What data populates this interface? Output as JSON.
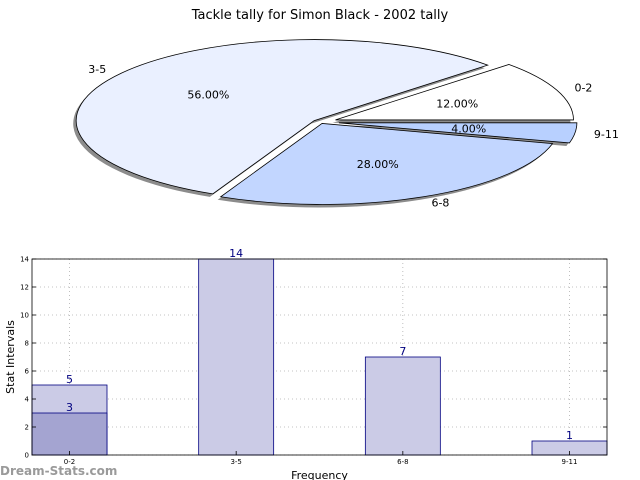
{
  "watermark": "Dream-Stats.com",
  "colors": {
    "pie_slices": [
      "#ffffff",
      "#eaf0ff",
      "#c2d6ff",
      "#b8d0ff"
    ],
    "pie_stroke": "#000000",
    "pie_shadow": "#8c8c8c",
    "bar_fill": "#cbcbe6",
    "bar_fill_dark": "#a4a4d1",
    "bar_stroke": "#000080",
    "bar_label": "#000080",
    "grid": "#b0b0b0"
  },
  "chart_data": [
    {
      "type": "pie",
      "title": "Tackle tally for Simon Black - 2002 tally",
      "slices": [
        {
          "label": "0-2",
          "value": 12.0,
          "pct_label": "12.00%"
        },
        {
          "label": "3-5",
          "value": 56.0,
          "pct_label": "56.00%"
        },
        {
          "label": "6-8",
          "value": 28.0,
          "pct_label": "28.00%"
        },
        {
          "label": "9-11",
          "value": 4.0,
          "pct_label": "4.00%"
        }
      ],
      "shadow": true,
      "exploded": true
    },
    {
      "type": "bar",
      "categories": [
        "0-2",
        "3-5",
        "6-8",
        "9-11"
      ],
      "values": [
        5,
        14,
        7,
        1
      ],
      "overlay": {
        "category": "0-2",
        "value": 3
      },
      "xlabel": "Frequency",
      "ylabel": "Stat Intervals",
      "ylim": [
        0,
        14
      ],
      "yticks": [
        0,
        2,
        4,
        6,
        8,
        10,
        12,
        14
      ],
      "grid": true
    }
  ]
}
